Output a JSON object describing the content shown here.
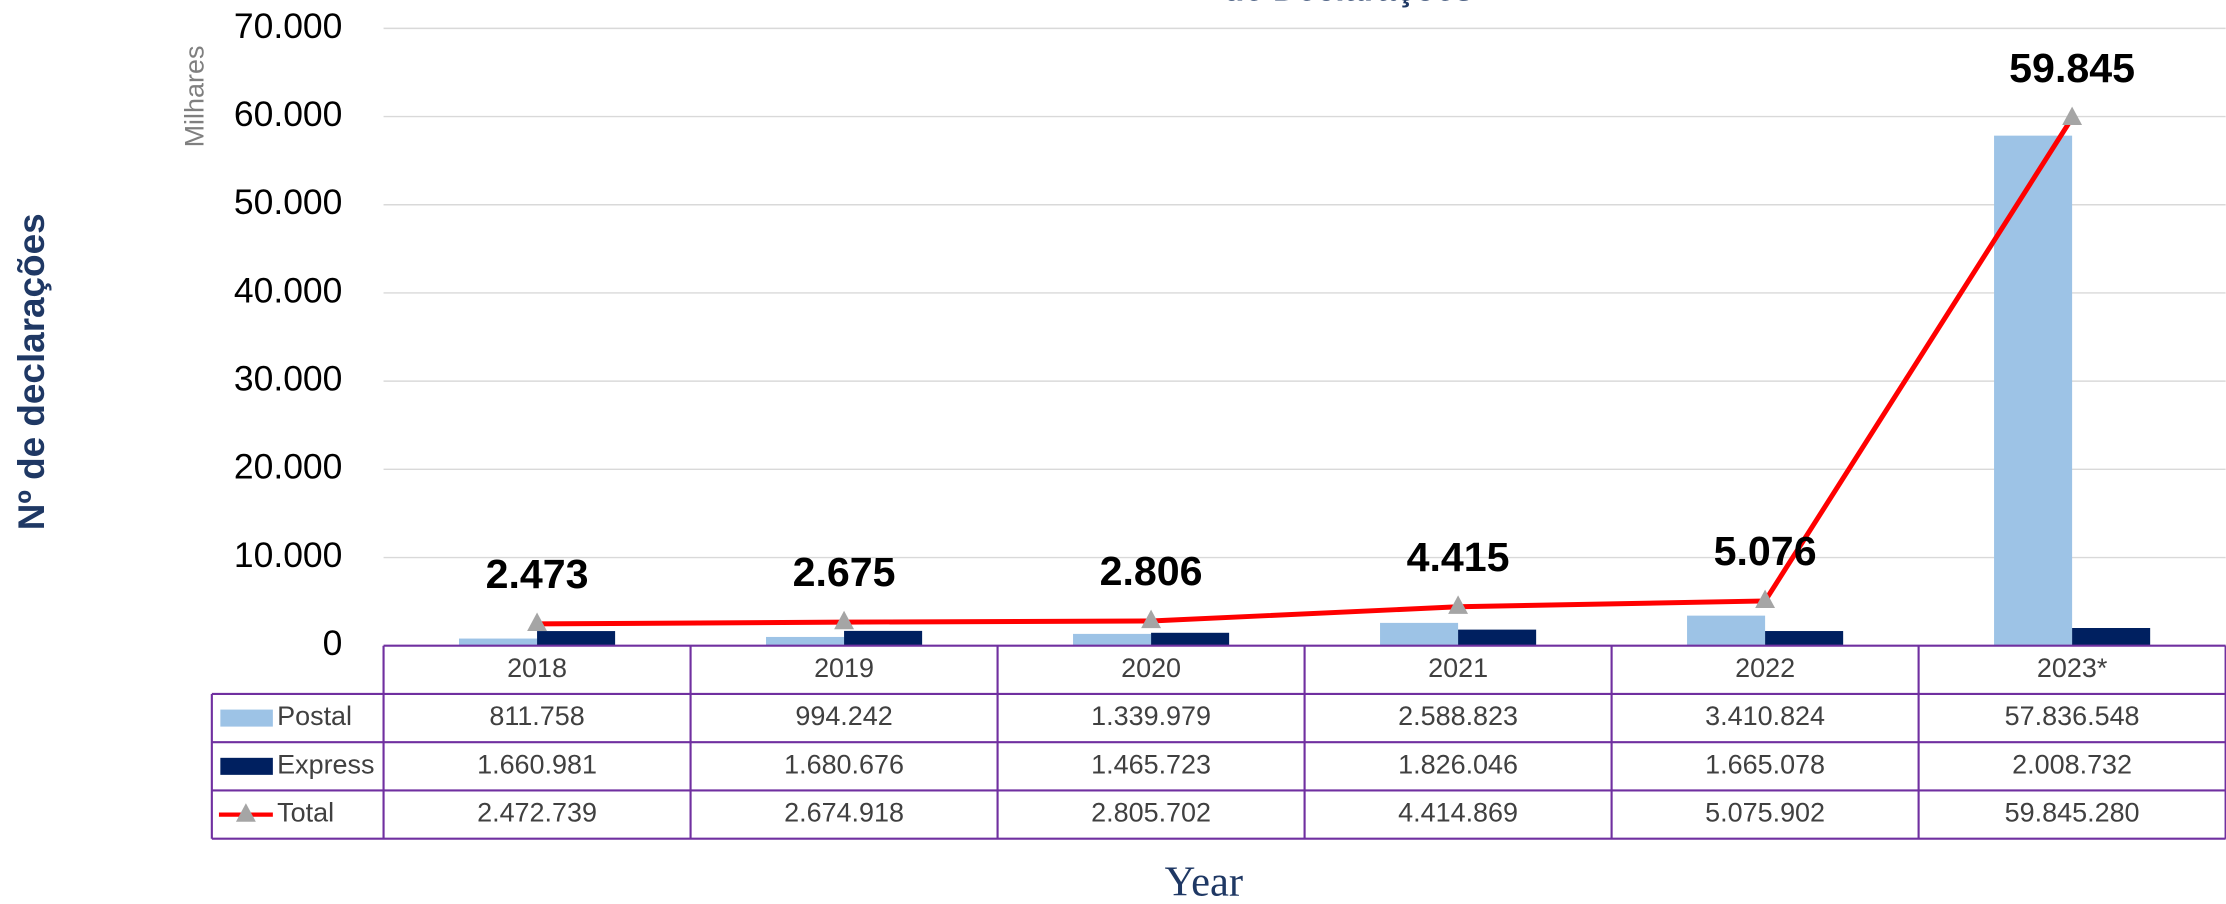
{
  "chart_data": {
    "type": "bar",
    "title": "de Declarações",
    "y_label": "Nº de declarações",
    "y_unit": "Milhares",
    "x_label": "Year",
    "categories": [
      "2018",
      "2019",
      "2020",
      "2021",
      "2022",
      "2023*"
    ],
    "series": [
      {
        "name": "Postal",
        "type": "bar",
        "color": "#9dc3e6",
        "values": [
          811.758,
          994.242,
          1339.979,
          2588.823,
          3410.824,
          57836.548
        ],
        "value_labels": [
          "811.758",
          "994.242",
          "1.339.979",
          "2.588.823",
          "3.410.824",
          "57.836.548"
        ]
      },
      {
        "name": "Express",
        "type": "bar",
        "color": "#002060",
        "values": [
          1660.981,
          1680.676,
          1465.723,
          1826.046,
          1665.078,
          2008.732
        ],
        "value_labels": [
          "1.660.981",
          "1.680.676",
          "1.465.723",
          "1.826.046",
          "1.665.078",
          "2.008.732"
        ]
      },
      {
        "name": "Total",
        "type": "line",
        "color": "#ff0000",
        "marker_color": "#a5a5a5",
        "values": [
          2472.739,
          2674.918,
          2805.702,
          4414.869,
          5075.902,
          59845.28
        ],
        "value_labels": [
          "2.473",
          "2.675",
          "2.806",
          "4.415",
          "5.076",
          "59.845"
        ],
        "table_labels": [
          "2.472.739",
          "2.674.918",
          "2.805.702",
          "4.414.869",
          "5.075.902",
          "59.845.280"
        ]
      }
    ],
    "ylim": [
      0,
      70000
    ],
    "yticks": [
      0,
      {
        "value": 10000,
        "label": "10.000"
      },
      {
        "value": 20000,
        "label": "20.000"
      },
      {
        "value": 30000,
        "label": "30.000"
      },
      {
        "value": 40000,
        "label": "40.000"
      },
      {
        "value": 50000,
        "label": "50.000"
      },
      {
        "value": 60000,
        "label": "60.000"
      },
      {
        "value": 70000,
        "label": "70.000"
      }
    ],
    "grid": true
  }
}
